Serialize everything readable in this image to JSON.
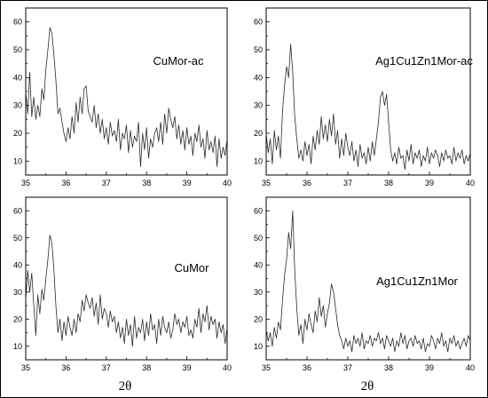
{
  "figure": {
    "xlabel": "2θ",
    "x_ticks": [
      35,
      36,
      37,
      38,
      39,
      40
    ],
    "y_ticks": [
      10,
      20,
      30,
      40,
      50,
      60
    ]
  },
  "chart_data": [
    {
      "type": "line",
      "title": "",
      "annotation": "CuMor-ac",
      "xlim": [
        35,
        40
      ],
      "ylim": [
        5,
        65
      ],
      "grid": false,
      "series": [
        {
          "x": [
            35.0,
            35.05,
            35.1,
            35.15,
            35.2,
            35.25,
            35.3,
            35.35,
            35.4,
            35.45,
            35.5,
            35.55,
            35.6,
            35.65,
            35.7,
            35.75,
            35.8,
            35.85,
            35.9,
            35.95,
            36.0,
            36.05,
            36.1,
            36.15,
            36.2,
            36.25,
            36.3,
            36.35,
            36.4,
            36.45,
            36.5,
            36.55,
            36.6,
            36.65,
            36.7,
            36.75,
            36.8,
            36.85,
            36.9,
            36.95,
            37.0,
            37.05,
            37.1,
            37.15,
            37.2,
            37.25,
            37.3,
            37.35,
            37.4,
            37.45,
            37.5,
            37.55,
            37.6,
            37.65,
            37.7,
            37.75,
            37.8,
            37.85,
            37.9,
            37.95,
            38.0,
            38.05,
            38.1,
            38.15,
            38.2,
            38.25,
            38.3,
            38.35,
            38.4,
            38.45,
            38.5,
            38.55,
            38.6,
            38.65,
            38.7,
            38.75,
            38.8,
            38.85,
            38.9,
            38.95,
            39.0,
            39.05,
            39.1,
            39.15,
            39.2,
            39.25,
            39.3,
            39.35,
            39.4,
            39.45,
            39.5,
            39.55,
            39.6,
            39.65,
            39.7,
            39.75,
            39.8,
            39.85,
            39.9,
            39.95,
            40.0
          ],
          "y": [
            35,
            27,
            42,
            26,
            33,
            25,
            30,
            26,
            36,
            32,
            43,
            50,
            58,
            56,
            48,
            39,
            27,
            29,
            24,
            20,
            17,
            22,
            18,
            26,
            20,
            31,
            24,
            33,
            27,
            36,
            37,
            28,
            26,
            24,
            30,
            22,
            27,
            20,
            25,
            18,
            22,
            16,
            24,
            19,
            21,
            17,
            25,
            14,
            20,
            18,
            23,
            13,
            21,
            15,
            19,
            17,
            24,
            8,
            20,
            14,
            22,
            11,
            18,
            15,
            20,
            22,
            17,
            24,
            16,
            27,
            20,
            29,
            25,
            22,
            26,
            18,
            23,
            16,
            21,
            14,
            22,
            16,
            19,
            12,
            20,
            17,
            23,
            15,
            18,
            11,
            21,
            14,
            17,
            13,
            19,
            8,
            18,
            11,
            15,
            12,
            18
          ]
        }
      ]
    },
    {
      "type": "line",
      "title": "",
      "annotation": "Ag1Cu1Zn1Mor-ac",
      "xlim": [
        35,
        40
      ],
      "ylim": [
        5,
        65
      ],
      "grid": false,
      "series": [
        {
          "x": [
            35.0,
            35.05,
            35.1,
            35.15,
            35.2,
            35.25,
            35.3,
            35.35,
            35.4,
            35.45,
            35.5,
            35.55,
            35.6,
            35.65,
            35.7,
            35.75,
            35.8,
            35.85,
            35.9,
            35.95,
            36.0,
            36.05,
            36.1,
            36.15,
            36.2,
            36.25,
            36.3,
            36.35,
            36.4,
            36.45,
            36.5,
            36.55,
            36.6,
            36.65,
            36.7,
            36.75,
            36.8,
            36.85,
            36.9,
            36.95,
            37.0,
            37.05,
            37.1,
            37.15,
            37.2,
            37.25,
            37.3,
            37.35,
            37.4,
            37.45,
            37.5,
            37.55,
            37.6,
            37.65,
            37.7,
            37.75,
            37.8,
            37.85,
            37.9,
            37.95,
            38.0,
            38.05,
            38.1,
            38.15,
            38.2,
            38.25,
            38.3,
            38.35,
            38.4,
            38.45,
            38.5,
            38.55,
            38.6,
            38.65,
            38.7,
            38.75,
            38.8,
            38.85,
            38.9,
            38.95,
            39.0,
            39.05,
            39.1,
            39.15,
            39.2,
            39.25,
            39.3,
            39.35,
            39.4,
            39.45,
            39.5,
            39.55,
            39.6,
            39.65,
            39.7,
            39.75,
            39.8,
            39.85,
            39.9,
            39.95,
            40.0
          ],
          "y": [
            20,
            13,
            18,
            9,
            21,
            14,
            19,
            11,
            28,
            37,
            44,
            40,
            52,
            42,
            26,
            18,
            11,
            14,
            10,
            17,
            12,
            16,
            9,
            19,
            14,
            21,
            16,
            26,
            18,
            23,
            17,
            25,
            19,
            27,
            16,
            21,
            11,
            18,
            12,
            20,
            15,
            12,
            17,
            10,
            14,
            8,
            16,
            11,
            13,
            9,
            15,
            10,
            17,
            12,
            18,
            24,
            33,
            35,
            30,
            34,
            24,
            14,
            10,
            13,
            9,
            15,
            11,
            12,
            7,
            14,
            10,
            16,
            9,
            13,
            11,
            14,
            8,
            12,
            10,
            15,
            9,
            13,
            11,
            14,
            12,
            8,
            13,
            10,
            14,
            11,
            12,
            9,
            15,
            10,
            13,
            11,
            14,
            9,
            12,
            10,
            13
          ]
        }
      ]
    },
    {
      "type": "line",
      "title": "",
      "annotation": "CuMor",
      "xlim": [
        35,
        40
      ],
      "ylim": [
        5,
        65
      ],
      "grid": false,
      "series": [
        {
          "x": [
            35.0,
            35.05,
            35.1,
            35.15,
            35.2,
            35.25,
            35.3,
            35.35,
            35.4,
            35.45,
            35.5,
            35.55,
            35.6,
            35.65,
            35.7,
            35.75,
            35.8,
            35.85,
            35.9,
            35.95,
            36.0,
            36.05,
            36.1,
            36.15,
            36.2,
            36.25,
            36.3,
            36.35,
            36.4,
            36.45,
            36.5,
            36.55,
            36.6,
            36.65,
            36.7,
            36.75,
            36.8,
            36.85,
            36.9,
            36.95,
            37.0,
            37.05,
            37.1,
            37.15,
            37.2,
            37.25,
            37.3,
            37.35,
            37.4,
            37.45,
            37.5,
            37.55,
            37.6,
            37.65,
            37.7,
            37.75,
            37.8,
            37.85,
            37.9,
            37.95,
            38.0,
            38.05,
            38.1,
            38.15,
            38.2,
            38.25,
            38.3,
            38.35,
            38.4,
            38.45,
            38.5,
            38.55,
            38.6,
            38.65,
            38.7,
            38.75,
            38.8,
            38.85,
            38.9,
            38.95,
            39.0,
            39.05,
            39.1,
            39.15,
            39.2,
            39.25,
            39.3,
            39.35,
            39.4,
            39.45,
            39.5,
            39.55,
            39.6,
            39.65,
            39.7,
            39.75,
            39.8,
            39.85,
            39.9,
            39.95,
            40.0
          ],
          "y": [
            27,
            38,
            30,
            37,
            25,
            14,
            29,
            22,
            31,
            27,
            35,
            42,
            51,
            48,
            38,
            25,
            15,
            20,
            12,
            19,
            14,
            21,
            17,
            14,
            20,
            15,
            22,
            19,
            27,
            23,
            29,
            26,
            24,
            28,
            21,
            26,
            18,
            29,
            20,
            24,
            22,
            17,
            23,
            19,
            21,
            15,
            19,
            13,
            17,
            11,
            20,
            14,
            18,
            10,
            21,
            13,
            17,
            15,
            20,
            12,
            19,
            14,
            22,
            16,
            18,
            11,
            20,
            14,
            21,
            17,
            15,
            19,
            13,
            16,
            22,
            18,
            20,
            15,
            19,
            17,
            21,
            14,
            16,
            13,
            20,
            17,
            24,
            15,
            22,
            19,
            25,
            16,
            21,
            18,
            20,
            13,
            19,
            15,
            18,
            11,
            17
          ]
        }
      ]
    },
    {
      "type": "line",
      "title": "",
      "annotation": "Ag1Cu1Zn1Mor",
      "xlim": [
        35,
        40
      ],
      "ylim": [
        5,
        65
      ],
      "grid": false,
      "series": [
        {
          "x": [
            35.0,
            35.05,
            35.1,
            35.15,
            35.2,
            35.25,
            35.3,
            35.35,
            35.4,
            35.45,
            35.5,
            35.55,
            35.6,
            35.65,
            35.7,
            35.75,
            35.8,
            35.85,
            35.9,
            35.95,
            36.0,
            36.05,
            36.1,
            36.15,
            36.2,
            36.25,
            36.3,
            36.35,
            36.4,
            36.45,
            36.5,
            36.55,
            36.6,
            36.65,
            36.7,
            36.75,
            36.8,
            36.85,
            36.9,
            36.95,
            37.0,
            37.05,
            37.1,
            37.15,
            37.2,
            37.25,
            37.3,
            37.35,
            37.4,
            37.45,
            37.5,
            37.55,
            37.6,
            37.65,
            37.7,
            37.75,
            37.8,
            37.85,
            37.9,
            37.95,
            38.0,
            38.05,
            38.1,
            38.15,
            38.2,
            38.25,
            38.3,
            38.35,
            38.4,
            38.45,
            38.5,
            38.55,
            38.6,
            38.65,
            38.7,
            38.75,
            38.8,
            38.85,
            38.9,
            38.95,
            39.0,
            39.05,
            39.1,
            39.15,
            39.2,
            39.25,
            39.3,
            39.35,
            39.4,
            39.45,
            39.5,
            39.55,
            39.6,
            39.65,
            39.7,
            39.75,
            39.8,
            39.85,
            39.9,
            39.95,
            40.0
          ],
          "y": [
            16,
            12,
            15,
            10,
            17,
            13,
            19,
            16,
            27,
            36,
            42,
            52,
            46,
            60,
            38,
            24,
            14,
            18,
            11,
            20,
            16,
            22,
            18,
            15,
            23,
            19,
            28,
            21,
            25,
            17,
            22,
            26,
            33,
            30,
            24,
            18,
            14,
            12,
            9,
            13,
            10,
            12,
            8,
            14,
            11,
            13,
            10,
            15,
            9,
            12,
            11,
            14,
            10,
            13,
            12,
            15,
            11,
            13,
            9,
            14,
            12,
            10,
            13,
            8,
            12,
            10,
            15,
            11,
            14,
            9,
            12,
            13,
            10,
            14,
            11,
            12,
            9,
            13,
            8,
            11,
            10,
            14,
            12,
            9,
            13,
            11,
            15,
            10,
            12,
            8,
            13,
            11,
            14,
            10,
            12,
            9,
            11,
            13,
            10,
            14,
            12
          ]
        }
      ]
    }
  ]
}
